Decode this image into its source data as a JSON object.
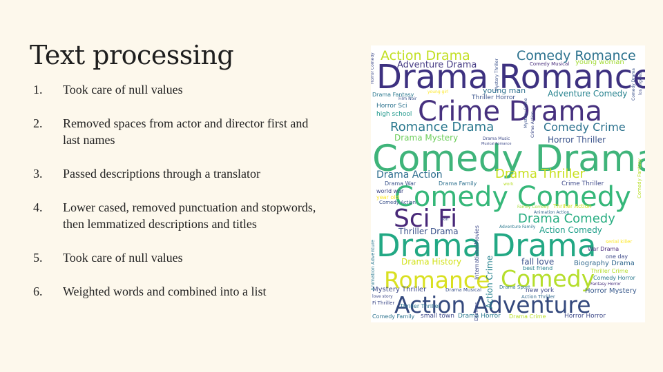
{
  "slide": {
    "title": "Text processing",
    "steps": [
      {
        "num": "1.",
        "text": "Took care of null values"
      },
      {
        "num": "2.",
        "text": "Removed spaces from actor and director first and last names"
      },
      {
        "num": "3.",
        "text": "Passed descriptions through a translator"
      },
      {
        "num": "4.",
        "text": "Lower cased, removed punctuation and stopwords, then lemmatized descriptions and titles"
      },
      {
        "num": "5.",
        "text": "Took care of null values"
      },
      {
        "num": "6.",
        "text": "Weighted words and combined into a list"
      }
    ]
  },
  "wordcloud": {
    "words": [
      {
        "text": "Comedy Drama",
        "color": "#3fb47a"
      },
      {
        "text": "Drama Romance",
        "color": "#3d3180"
      },
      {
        "text": "Comedy Comedy",
        "color": "#35b779"
      },
      {
        "text": "Drama Drama",
        "color": "#22a884"
      },
      {
        "text": "Crime Drama",
        "color": "#46307e"
      },
      {
        "text": "Action Adventure",
        "color": "#34497d"
      },
      {
        "text": "Sci Fi",
        "color": "#482878"
      },
      {
        "text": "Romance",
        "color": "#d9e021"
      },
      {
        "text": "Comedy",
        "color": "#b5de2b"
      },
      {
        "text": "Action Drama",
        "color": "#c2df23"
      },
      {
        "text": "Comedy Romance",
        "color": "#2c728e"
      },
      {
        "text": "Adventure Drama",
        "color": "#443a83"
      },
      {
        "text": "Romance Drama",
        "color": "#2a788e"
      },
      {
        "text": "Comedy Crime",
        "color": "#2c728e"
      },
      {
        "text": "Drama Thriller",
        "color": "#c8e020"
      },
      {
        "text": "Drama Comedy",
        "color": "#27ad81"
      },
      {
        "text": "Drama Action",
        "color": "#2e6e8e"
      },
      {
        "text": "Drama Mystery",
        "color": "#6ccd5a"
      },
      {
        "text": "Horror Thriller",
        "color": "#3a538b"
      },
      {
        "text": "Adventure Comedy",
        "color": "#26828e"
      },
      {
        "text": "young man",
        "color": "#2d708e"
      },
      {
        "text": "young woman",
        "color": "#a2da37"
      },
      {
        "text": "Thriller Drama",
        "color": "#3b528b"
      },
      {
        "text": "Action Comedy",
        "color": "#1f9e89"
      },
      {
        "text": "Drama History",
        "color": "#d2e21b"
      },
      {
        "text": "fall love",
        "color": "#3b528b"
      },
      {
        "text": "Biography Drama",
        "color": "#31688e"
      },
      {
        "text": "Mystery Thriller",
        "color": "#3e4a89"
      },
      {
        "text": "Horror Mystery",
        "color": "#38598c"
      },
      {
        "text": "Action Crime",
        "color": "#26828e"
      },
      {
        "text": "Drama Fantasy",
        "color": "#2a788e"
      },
      {
        "text": "Horror Sci",
        "color": "#2c728e"
      },
      {
        "text": "high school",
        "color": "#1f988b"
      },
      {
        "text": "Thriller Horror",
        "color": "#3a538b"
      },
      {
        "text": "Comedy Musical",
        "color": "#472d7b"
      },
      {
        "text": "Drama War",
        "color": "#3b528b"
      },
      {
        "text": "Drama Family",
        "color": "#2d708e"
      },
      {
        "text": "Crime Thriller",
        "color": "#3e4989"
      },
      {
        "text": "world war",
        "color": "#3f4788"
      },
      {
        "text": "year old",
        "color": "#fde725"
      },
      {
        "text": "Comedy Action",
        "color": "#3b528b"
      },
      {
        "text": "Comedy Family",
        "color": "#2c728e"
      },
      {
        "text": "small town",
        "color": "#3e4989"
      },
      {
        "text": "Drama Horror",
        "color": "#2a788e"
      },
      {
        "text": "Drama Crime",
        "color": "#b8de29"
      },
      {
        "text": "Horror Horror",
        "color": "#3e4a89"
      },
      {
        "text": "InternationalMovies",
        "color": "#3e4a89"
      },
      {
        "text": "Thriller Action",
        "color": "#d2e21b"
      },
      {
        "text": "Family Comedy",
        "color": "#a5db36"
      },
      {
        "text": "Animation Action",
        "color": "#31688e"
      },
      {
        "text": "Adventure Family",
        "color": "#2a788e"
      },
      {
        "text": "Drama Musical",
        "color": "#3b528b"
      },
      {
        "text": "Drama Sport",
        "color": "#2c728e"
      },
      {
        "text": "new york",
        "color": "#3e4a89"
      },
      {
        "text": "Action Thriller",
        "color": "#31688e"
      },
      {
        "text": "best friend",
        "color": "#26828e"
      },
      {
        "text": "Comedy Horror",
        "color": "#2a788e"
      },
      {
        "text": "Fantasy Horror",
        "color": "#472d7b"
      },
      {
        "text": "Thriller Crime",
        "color": "#b5de2b"
      },
      {
        "text": "War Drama",
        "color": "#482878"
      },
      {
        "text": "one day",
        "color": "#3e4a89"
      },
      {
        "text": "serial killer",
        "color": "#fde725"
      },
      {
        "text": "Thriller Thriller",
        "color": "#2c728e"
      },
      {
        "text": "Film Noir",
        "color": "#3b528b"
      },
      {
        "text": "young girl",
        "color": "#fde725"
      },
      {
        "text": "Fi Thriller",
        "color": "#3e4a89"
      },
      {
        "text": "love story",
        "color": "#3e4a89"
      },
      {
        "text": "Drama Music",
        "color": "#3e4a89"
      },
      {
        "text": "Musical Romance",
        "color": "#3e4a89"
      },
      {
        "text": "work",
        "color": "#b8de29"
      },
      {
        "text": "son",
        "color": "#3e4a89"
      },
      {
        "text": "Animation Adventure",
        "color": "#2a788e"
      },
      {
        "text": "Mystery Crime",
        "color": "#3b528b"
      },
      {
        "text": "Crime Action",
        "color": "#3e4a89"
      },
      {
        "text": "Mystery Thriller",
        "color": "#3b528b"
      },
      {
        "text": "Horror Comedy",
        "color": "#3e4a89"
      },
      {
        "text": "Dramas",
        "color": "#3e4a89"
      },
      {
        "text": "Comedy Fantasy",
        "color": "#b8de29"
      },
      {
        "text": "los angeles",
        "color": "#3e4a89"
      },
      {
        "text": "Comedy Drama",
        "color": "#3b528b"
      }
    ]
  }
}
